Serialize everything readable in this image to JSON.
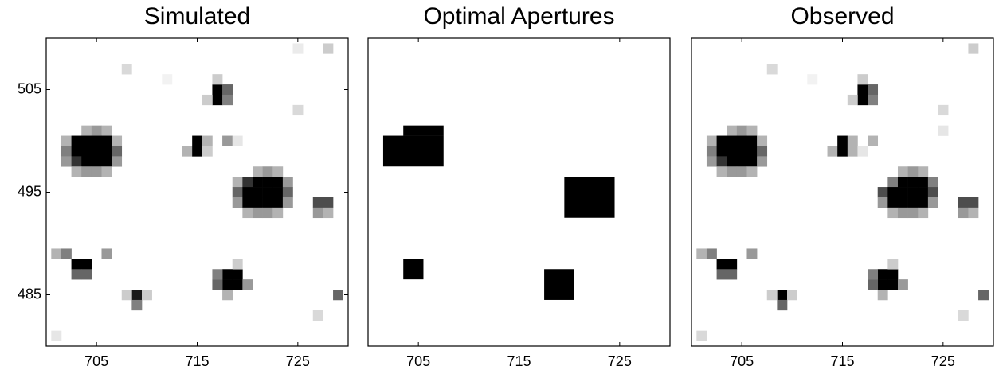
{
  "chart_data": [
    {
      "type": "heatmap",
      "title": "Simulated",
      "xlim": [
        700,
        730
      ],
      "ylim": [
        480,
        510
      ],
      "xticks": [
        705,
        715,
        725
      ],
      "yticks": [
        485,
        495,
        505
      ],
      "pixels": [
        [
          704,
          501,
          0.3
        ],
        [
          705,
          501,
          0.4
        ],
        [
          706,
          501,
          0.3
        ],
        [
          702,
          500,
          0.3
        ],
        [
          703,
          500,
          1
        ],
        [
          704,
          500,
          1
        ],
        [
          705,
          500,
          1
        ],
        [
          706,
          500,
          1
        ],
        [
          707,
          500,
          0.3
        ],
        [
          702,
          499,
          0.5
        ],
        [
          703,
          499,
          1
        ],
        [
          704,
          499,
          1
        ],
        [
          705,
          499,
          1
        ],
        [
          706,
          499,
          1
        ],
        [
          707,
          499,
          0.6
        ],
        [
          702,
          498,
          0.4
        ],
        [
          703,
          498,
          0.8
        ],
        [
          704,
          498,
          1
        ],
        [
          705,
          498,
          1
        ],
        [
          706,
          498,
          1
        ],
        [
          707,
          498,
          0.4
        ],
        [
          703,
          497,
          0.3
        ],
        [
          704,
          497,
          0.4
        ],
        [
          705,
          497,
          0.4
        ],
        [
          706,
          497,
          0.3
        ],
        [
          714,
          499,
          0.3
        ],
        [
          715,
          500,
          1
        ],
        [
          715,
          499,
          1
        ],
        [
          716,
          499,
          0.2
        ],
        [
          716,
          500,
          0.3
        ],
        [
          718,
          500,
          0.4
        ],
        [
          719,
          500,
          0.1
        ],
        [
          717,
          505,
          1
        ],
        [
          717,
          504,
          1
        ],
        [
          718,
          505,
          0.6
        ],
        [
          718,
          504,
          0.5
        ],
        [
          716,
          504,
          0.2
        ],
        [
          717,
          506,
          0.2
        ],
        [
          721,
          497,
          0.3
        ],
        [
          722,
          497,
          0.4
        ],
        [
          723,
          497,
          0.3
        ],
        [
          719,
          496,
          0.3
        ],
        [
          720,
          496,
          0.8
        ],
        [
          721,
          496,
          1
        ],
        [
          722,
          496,
          1
        ],
        [
          723,
          496,
          1
        ],
        [
          724,
          496,
          0.4
        ],
        [
          719,
          495,
          0.6
        ],
        [
          720,
          495,
          1
        ],
        [
          721,
          495,
          1
        ],
        [
          722,
          495,
          1
        ],
        [
          723,
          495,
          1
        ],
        [
          724,
          495,
          0.6
        ],
        [
          719,
          494,
          0.4
        ],
        [
          720,
          494,
          1
        ],
        [
          721,
          494,
          1
        ],
        [
          722,
          494,
          1
        ],
        [
          723,
          494,
          1
        ],
        [
          724,
          494,
          0.4
        ],
        [
          720,
          493,
          0.3
        ],
        [
          721,
          493,
          0.4
        ],
        [
          722,
          493,
          0.4
        ],
        [
          723,
          493,
          0.3
        ],
        [
          727,
          494,
          0.7
        ],
        [
          728,
          494,
          0.7
        ],
        [
          727,
          493,
          0.4
        ],
        [
          728,
          493,
          0.3
        ],
        [
          704,
          488,
          1
        ],
        [
          703,
          488,
          1
        ],
        [
          703,
          487,
          0.6
        ],
        [
          704,
          487,
          0.6
        ],
        [
          701,
          489,
          0.3
        ],
        [
          702,
          489,
          0.5
        ],
        [
          706,
          489,
          0.4
        ],
        [
          718,
          487,
          1
        ],
        [
          719,
          487,
          1
        ],
        [
          718,
          486,
          1
        ],
        [
          719,
          486,
          1
        ],
        [
          717,
          486,
          0.6
        ],
        [
          717,
          487,
          0.5
        ],
        [
          720,
          486,
          0.4
        ],
        [
          718,
          485,
          0.3
        ],
        [
          719,
          488,
          0.2
        ],
        [
          709,
          485,
          0.9
        ],
        [
          709,
          484,
          0.5
        ],
        [
          708,
          485,
          0.2
        ],
        [
          710,
          485,
          0.2
        ],
        [
          708,
          507,
          0.15
        ],
        [
          725,
          503,
          0.15
        ],
        [
          728,
          509,
          0.2
        ],
        [
          729,
          485,
          0.6
        ],
        [
          701,
          481,
          0.1
        ],
        [
          727,
          483,
          0.15
        ],
        [
          725,
          509,
          0.08
        ],
        [
          712,
          506,
          0.05
        ]
      ]
    },
    {
      "type": "heatmap",
      "title": "Optimal Apertures",
      "xlim": [
        700,
        730
      ],
      "ylim": [
        480,
        510
      ],
      "xticks": [
        705,
        715,
        725
      ],
      "regions": [
        [
          701.5,
          707.5,
          497.5,
          500.5
        ],
        [
          703.5,
          707.5,
          500.5,
          501.5
        ],
        [
          719.5,
          724.5,
          492.5,
          496.5
        ],
        [
          703.5,
          705.5,
          486.5,
          488.5
        ],
        [
          717.5,
          720.5,
          484.5,
          487.5
        ]
      ]
    },
    {
      "type": "heatmap",
      "title": "Observed",
      "xlim": [
        700,
        730
      ],
      "ylim": [
        480,
        510
      ],
      "xticks": [
        705,
        715,
        725
      ],
      "pixels": [
        [
          704,
          501,
          0.3
        ],
        [
          705,
          501,
          0.4
        ],
        [
          706,
          501,
          0.3
        ],
        [
          702,
          500,
          0.3
        ],
        [
          703,
          500,
          1
        ],
        [
          704,
          500,
          1
        ],
        [
          705,
          500,
          1
        ],
        [
          706,
          500,
          1
        ],
        [
          707,
          500,
          0.3
        ],
        [
          702,
          499,
          0.5
        ],
        [
          703,
          499,
          1
        ],
        [
          704,
          499,
          1
        ],
        [
          705,
          499,
          1
        ],
        [
          706,
          499,
          1
        ],
        [
          707,
          499,
          0.6
        ],
        [
          702,
          498,
          0.4
        ],
        [
          703,
          498,
          0.8
        ],
        [
          704,
          498,
          1
        ],
        [
          705,
          498,
          1
        ],
        [
          706,
          498,
          1
        ],
        [
          707,
          498,
          0.4
        ],
        [
          703,
          497,
          0.3
        ],
        [
          704,
          497,
          0.4
        ],
        [
          705,
          497,
          0.4
        ],
        [
          706,
          497,
          0.3
        ],
        [
          714,
          499,
          0.3
        ],
        [
          715,
          500,
          1
        ],
        [
          715,
          499,
          1
        ],
        [
          716,
          499,
          0.3
        ],
        [
          716,
          500,
          0.3
        ],
        [
          718,
          500,
          0.3
        ],
        [
          717,
          499,
          0.1
        ],
        [
          717,
          505,
          1
        ],
        [
          717,
          504,
          1
        ],
        [
          718,
          505,
          0.6
        ],
        [
          718,
          504,
          0.5
        ],
        [
          716,
          504,
          0.2
        ],
        [
          717,
          506,
          0.2
        ],
        [
          721,
          497,
          0.3
        ],
        [
          722,
          497,
          0.4
        ],
        [
          723,
          497,
          0.3
        ],
        [
          720,
          496,
          0.5
        ],
        [
          721,
          496,
          1
        ],
        [
          722,
          496,
          1
        ],
        [
          723,
          496,
          1
        ],
        [
          724,
          496,
          0.5
        ],
        [
          719,
          495,
          0.7
        ],
        [
          720,
          495,
          1
        ],
        [
          721,
          495,
          1
        ],
        [
          722,
          495,
          1
        ],
        [
          723,
          495,
          1
        ],
        [
          724,
          495,
          0.7
        ],
        [
          719,
          494,
          0.4
        ],
        [
          720,
          494,
          1
        ],
        [
          721,
          494,
          1
        ],
        [
          722,
          494,
          1
        ],
        [
          723,
          494,
          1
        ],
        [
          724,
          494,
          0.4
        ],
        [
          720,
          493,
          0.3
        ],
        [
          721,
          493,
          0.4
        ],
        [
          722,
          493,
          0.4
        ],
        [
          723,
          493,
          0.3
        ],
        [
          727,
          494,
          0.7
        ],
        [
          728,
          494,
          0.7
        ],
        [
          727,
          493,
          0.4
        ],
        [
          728,
          493,
          0.3
        ],
        [
          704,
          488,
          1
        ],
        [
          703,
          488,
          1
        ],
        [
          703,
          487,
          0.6
        ],
        [
          704,
          487,
          0.6
        ],
        [
          701,
          489,
          0.3
        ],
        [
          702,
          489,
          0.5
        ],
        [
          706,
          489,
          0.4
        ],
        [
          719,
          487,
          1
        ],
        [
          720,
          487,
          1
        ],
        [
          719,
          486,
          1
        ],
        [
          720,
          486,
          1
        ],
        [
          718,
          486,
          0.6
        ],
        [
          718,
          487,
          0.5
        ],
        [
          721,
          486,
          0.4
        ],
        [
          719,
          485,
          0.3
        ],
        [
          720,
          488,
          0.2
        ],
        [
          709,
          485,
          1
        ],
        [
          709,
          484,
          0.6
        ],
        [
          708,
          485,
          0.2
        ],
        [
          710,
          485,
          0.2
        ],
        [
          708,
          507,
          0.15
        ],
        [
          725,
          503,
          0.15
        ],
        [
          728,
          509,
          0.2
        ],
        [
          729,
          485,
          0.6
        ],
        [
          701,
          481,
          0.15
        ],
        [
          727,
          483,
          0.15
        ],
        [
          725,
          501,
          0.1
        ],
        [
          712,
          506,
          0.05
        ]
      ]
    }
  ]
}
